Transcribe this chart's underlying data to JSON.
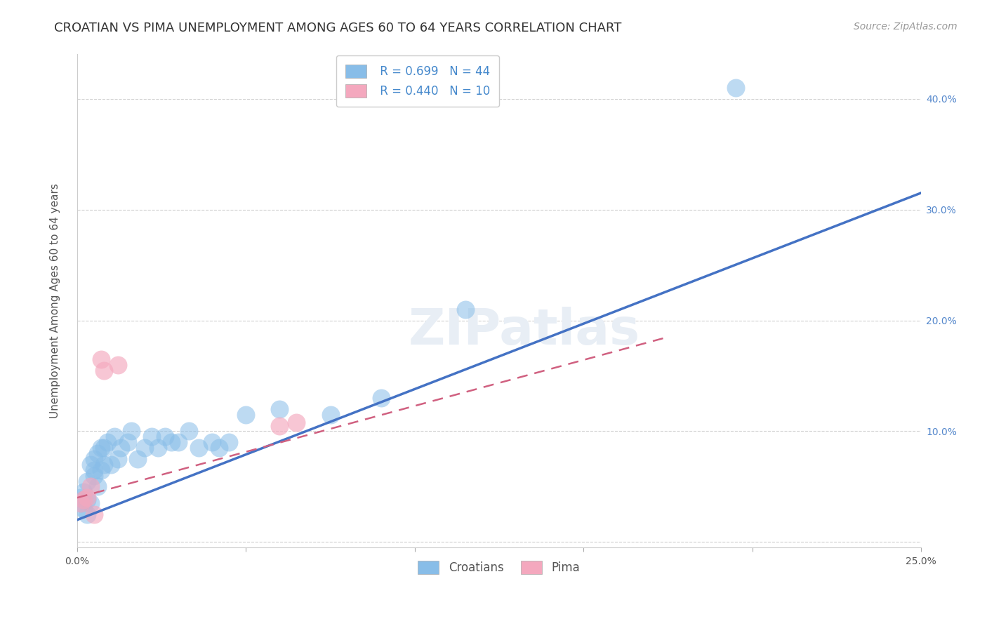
{
  "title": "CROATIAN VS PIMA UNEMPLOYMENT AMONG AGES 60 TO 64 YEARS CORRELATION CHART",
  "source": "Source: ZipAtlas.com",
  "ylabel": "Unemployment Among Ages 60 to 64 years",
  "xlim": [
    0.0,
    0.25
  ],
  "ylim": [
    -0.005,
    0.44
  ],
  "xticks": [
    0.0,
    0.05,
    0.1,
    0.15,
    0.2,
    0.25
  ],
  "yticks": [
    0.0,
    0.1,
    0.2,
    0.3,
    0.4
  ],
  "xtick_labels": [
    "0.0%",
    "",
    "",
    "",
    "",
    "25.0%"
  ],
  "ytick_labels_right": [
    "",
    "10.0%",
    "20.0%",
    "30.0%",
    "40.0%"
  ],
  "background_color": "#ffffff",
  "grid_color": "#d0d0d0",
  "croatian_color": "#88bde8",
  "pima_color": "#f4a8be",
  "croatian_line_color": "#4472c4",
  "pima_line_color": "#d06080",
  "legend_R_croatian": "R = 0.699",
  "legend_N_croatian": "N = 44",
  "legend_R_pima": "R = 0.440",
  "legend_N_pima": "N = 10",
  "croatian_x": [
    0.001,
    0.001,
    0.002,
    0.002,
    0.002,
    0.003,
    0.003,
    0.003,
    0.004,
    0.004,
    0.005,
    0.005,
    0.005,
    0.006,
    0.006,
    0.007,
    0.007,
    0.008,
    0.008,
    0.009,
    0.01,
    0.011,
    0.012,
    0.013,
    0.015,
    0.016,
    0.018,
    0.02,
    0.022,
    0.024,
    0.026,
    0.028,
    0.03,
    0.033,
    0.036,
    0.04,
    0.042,
    0.045,
    0.05,
    0.06,
    0.075,
    0.09,
    0.115,
    0.195
  ],
  "croatian_y": [
    0.035,
    0.04,
    0.03,
    0.038,
    0.045,
    0.025,
    0.038,
    0.055,
    0.035,
    0.07,
    0.06,
    0.065,
    0.075,
    0.05,
    0.08,
    0.065,
    0.085,
    0.07,
    0.085,
    0.09,
    0.07,
    0.095,
    0.075,
    0.085,
    0.09,
    0.1,
    0.075,
    0.085,
    0.095,
    0.085,
    0.095,
    0.09,
    0.09,
    0.1,
    0.085,
    0.09,
    0.085,
    0.09,
    0.115,
    0.12,
    0.115,
    0.13,
    0.21,
    0.41
  ],
  "pima_x": [
    0.001,
    0.002,
    0.003,
    0.004,
    0.005,
    0.007,
    0.008,
    0.012,
    0.06,
    0.065
  ],
  "pima_y": [
    0.035,
    0.038,
    0.04,
    0.05,
    0.025,
    0.165,
    0.155,
    0.16,
    0.105,
    0.108
  ],
  "pima_line_x_end": 0.175,
  "title_fontsize": 13,
  "axis_label_fontsize": 11,
  "tick_fontsize": 10,
  "legend_fontsize": 12,
  "source_fontsize": 10,
  "watermark_text": "ZIPatlas",
  "watermark_fontsize": 52
}
